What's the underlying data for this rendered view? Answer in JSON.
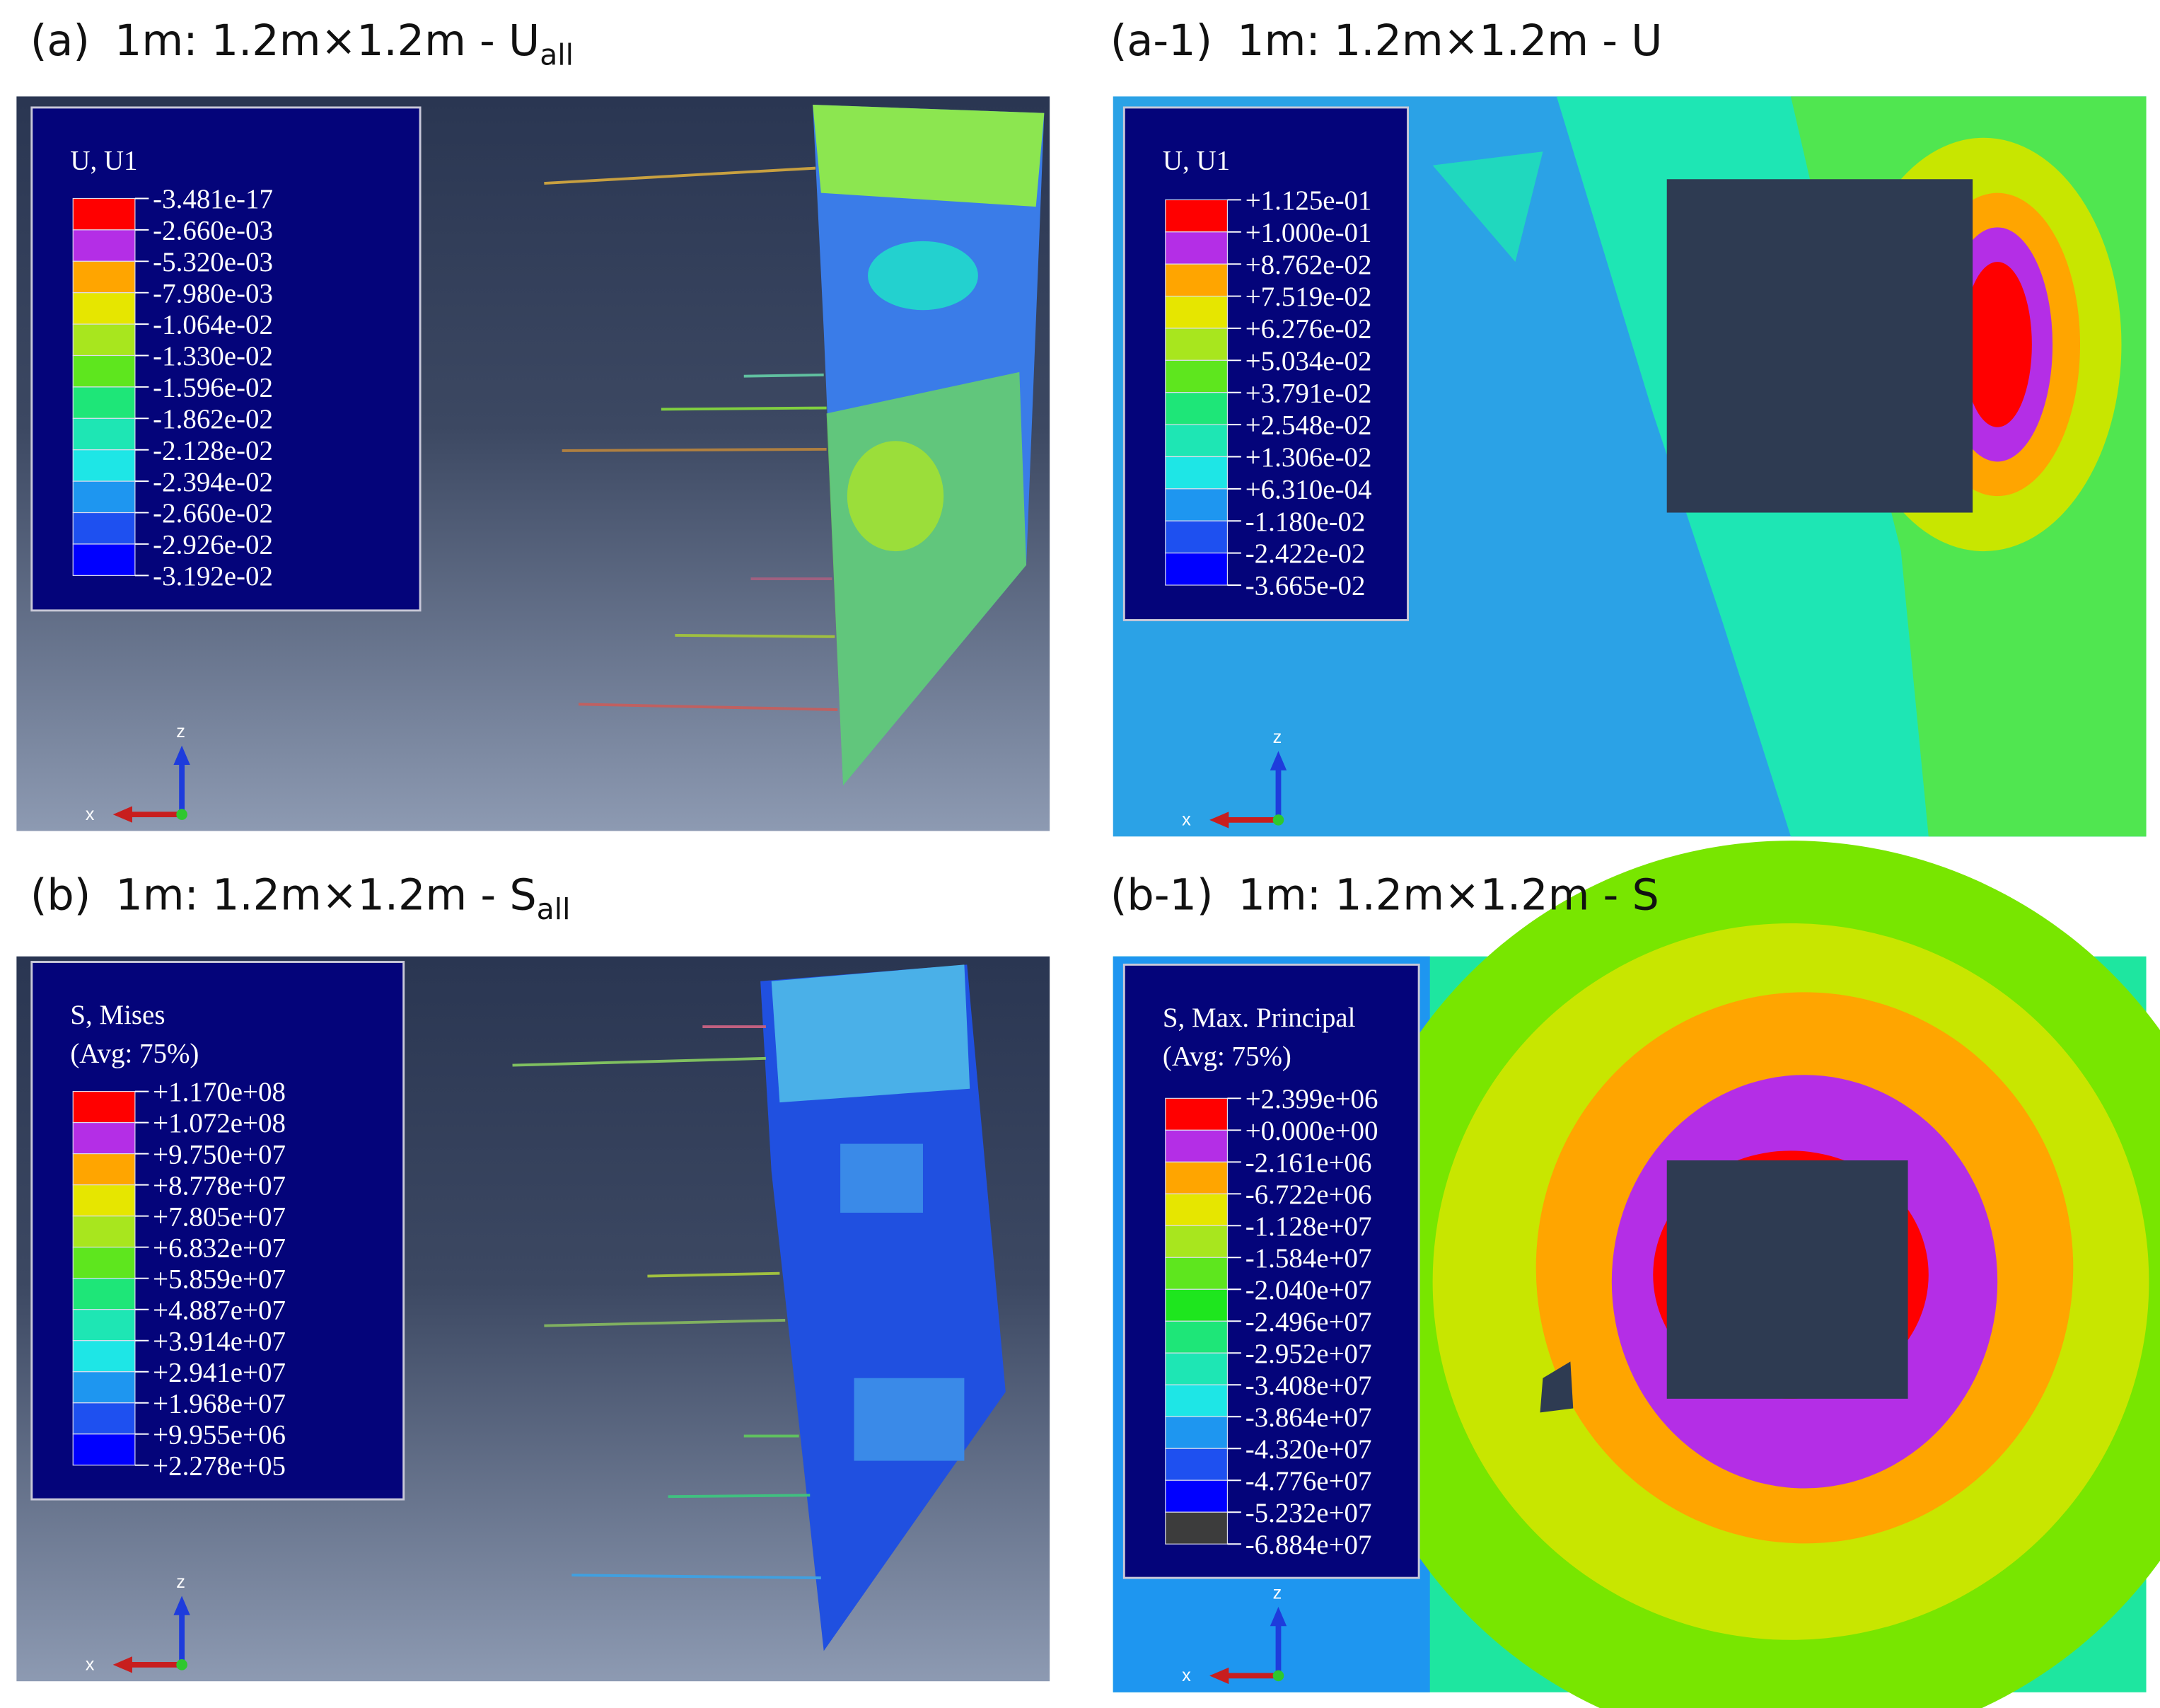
{
  "panels": [
    {
      "label": "(a)",
      "title": "1m: 1.2m×1.2m - U",
      "subscript": "all",
      "legend_title": [
        "U, U1"
      ],
      "legend_values": [
        "-3.481e-17",
        "-2.660e-03",
        "-5.320e-03",
        "-7.980e-03",
        "-1.064e-02",
        "-1.330e-02",
        "-1.596e-02",
        "-1.862e-02",
        "-2.128e-02",
        "-2.394e-02",
        "-2.660e-02",
        "-2.926e-02",
        "-3.192e-02"
      ],
      "axes": {
        "z": "z",
        "x": "x"
      }
    },
    {
      "label": "(a-1)",
      "title": "1m: 1.2m×1.2m -  U",
      "legend_title": [
        "U, U1"
      ],
      "legend_values": [
        "+1.125e-01",
        "+1.000e-01",
        "+8.762e-02",
        "+7.519e-02",
        "+6.276e-02",
        "+5.034e-02",
        "+3.791e-02",
        "+2.548e-02",
        "+1.306e-02",
        "+6.310e-04",
        "-1.180e-02",
        "-2.422e-02",
        "-3.665e-02"
      ],
      "axes": {
        "z": "z",
        "x": "x"
      }
    },
    {
      "label": "(b)",
      "title": "1m: 1.2m×1.2m - S",
      "subscript": "all",
      "legend_title": [
        "S, Mises",
        "(Avg: 75%)"
      ],
      "legend_values": [
        "+1.170e+08",
        "+1.072e+08",
        "+9.750e+07",
        "+8.778e+07",
        "+7.805e+07",
        "+6.832e+07",
        "+5.859e+07",
        "+4.887e+07",
        "+3.914e+07",
        "+2.941e+07",
        "+1.968e+07",
        "+9.955e+06",
        "+2.278e+05"
      ],
      "axes": {
        "z": "z",
        "x": "x"
      }
    },
    {
      "label": "(b-1)",
      "title": "1m: 1.2m×1.2m -  S",
      "legend_title": [
        "S, Max. Principal",
        "(Avg: 75%)"
      ],
      "legend_values": [
        "+2.399e+06",
        "+0.000e+00",
        "-2.161e+06",
        "-6.722e+06",
        "-1.128e+07",
        "-1.584e+07",
        "-2.040e+07",
        "-2.496e+07",
        "-2.952e+07",
        "-3.408e+07",
        "-3.864e+07",
        "-4.320e+07",
        "-4.776e+07",
        "-5.232e+07",
        "-6.884e+07"
      ],
      "axes": {
        "z": "z",
        "x": "x"
      }
    }
  ]
}
